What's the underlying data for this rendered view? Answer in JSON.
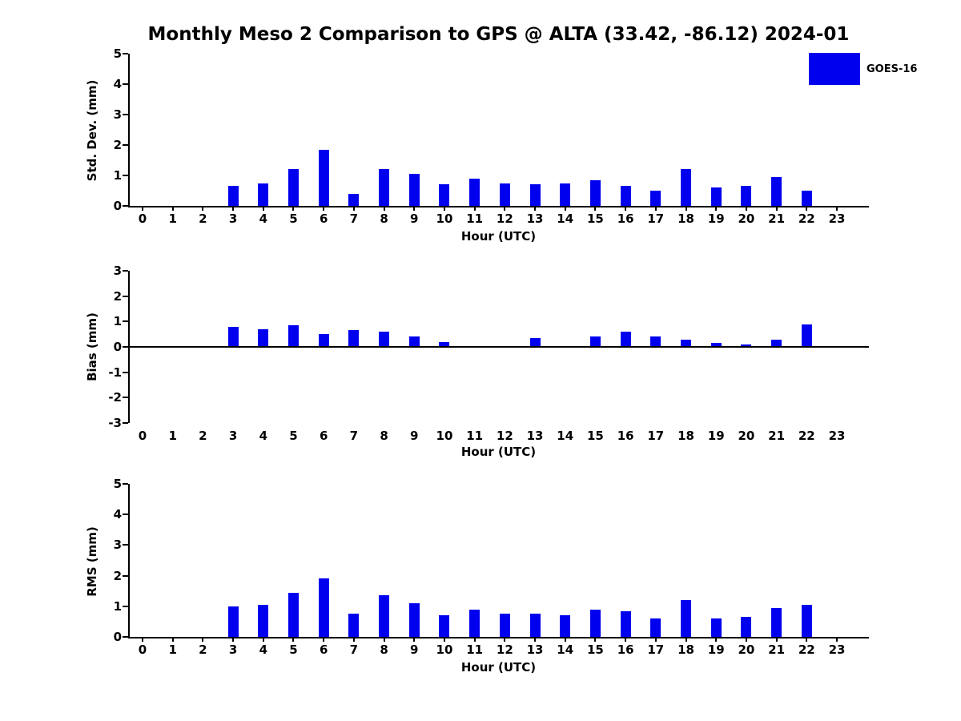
{
  "title": "Monthly Meso 2 Comparison to GPS @ ALTA (33.42, -86.12) 2024-01",
  "legend": {
    "label": "GOES-16",
    "color": "#0000EE"
  },
  "bar_color": "#0000EE",
  "chart_data": [
    {
      "type": "bar",
      "title": "Std. Dev. subplot",
      "ylabel": "Std. Dev. (mm)",
      "xlabel": "Hour (UTC)",
      "ylim": [
        0,
        5
      ],
      "yticks": [
        0,
        1,
        2,
        3,
        4,
        5
      ],
      "grid": false,
      "legend_position": "top-right",
      "categories": [
        0,
        1,
        2,
        3,
        4,
        5,
        6,
        7,
        8,
        9,
        10,
        11,
        12,
        13,
        14,
        15,
        16,
        17,
        18,
        19,
        20,
        21,
        22,
        23
      ],
      "values": [
        0,
        0,
        0,
        0.65,
        0.75,
        1.2,
        1.85,
        0.4,
        1.2,
        1.05,
        0.7,
        0.9,
        0.75,
        0.7,
        0.75,
        0.85,
        0.65,
        0.5,
        1.2,
        0.6,
        0.65,
        0.95,
        0.5,
        0
      ]
    },
    {
      "type": "bar",
      "title": "Bias subplot",
      "ylabel": "Bias (mm)",
      "xlabel": "Hour (UTC)",
      "ylim": [
        -3,
        3
      ],
      "yticks": [
        -3,
        -2,
        -1,
        0,
        1,
        2,
        3
      ],
      "grid": false,
      "categories": [
        0,
        1,
        2,
        3,
        4,
        5,
        6,
        7,
        8,
        9,
        10,
        11,
        12,
        13,
        14,
        15,
        16,
        17,
        18,
        19,
        20,
        21,
        22,
        23
      ],
      "values": [
        0,
        0,
        0,
        0.8,
        0.7,
        0.85,
        0.5,
        0.65,
        0.6,
        0.4,
        0.2,
        0,
        0,
        0.35,
        0,
        0.4,
        0.6,
        0.4,
        0.3,
        0.15,
        0.1,
        0.3,
        0.9,
        0
      ]
    },
    {
      "type": "bar",
      "title": "RMS subplot",
      "ylabel": "RMS (mm)",
      "xlabel": "Hour (UTC)",
      "ylim": [
        0,
        5
      ],
      "yticks": [
        0,
        1,
        2,
        3,
        4,
        5
      ],
      "grid": false,
      "categories": [
        0,
        1,
        2,
        3,
        4,
        5,
        6,
        7,
        8,
        9,
        10,
        11,
        12,
        13,
        14,
        15,
        16,
        17,
        18,
        19,
        20,
        21,
        22,
        23
      ],
      "values": [
        0,
        0,
        0,
        1.0,
        1.05,
        1.45,
        1.9,
        0.75,
        1.35,
        1.1,
        0.7,
        0.9,
        0.75,
        0.75,
        0.7,
        0.9,
        0.85,
        0.6,
        1.2,
        0.6,
        0.65,
        0.95,
        1.05,
        0
      ]
    }
  ]
}
